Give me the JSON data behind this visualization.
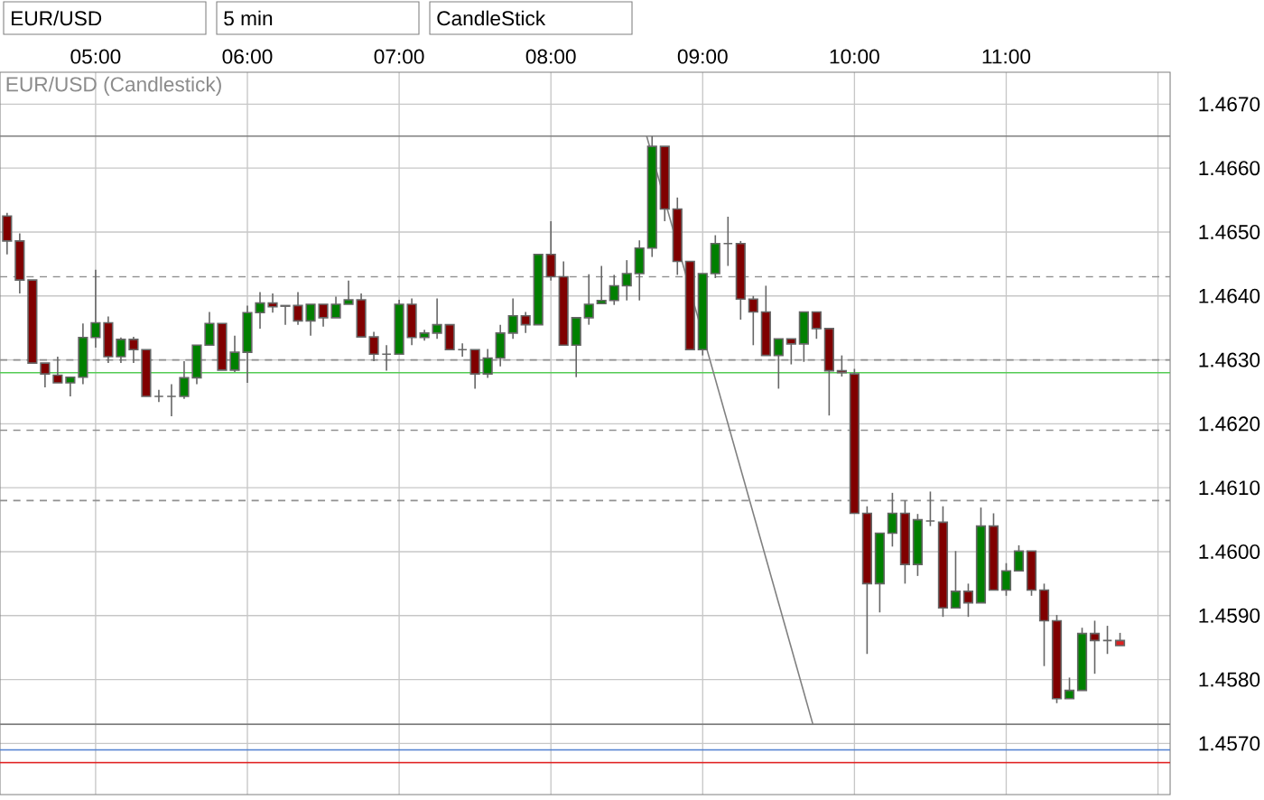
{
  "chart_data": {
    "type": "candlestick",
    "title": "EUR/USD (Candlestick)",
    "annotations": [
      "EUR/USD",
      "5 min",
      "CandleStick"
    ],
    "x": [
      4.4167,
      4.5,
      4.5833,
      4.6667,
      4.75,
      4.8333,
      4.9167,
      5,
      5.0833,
      5.1667,
      5.25,
      5.3333,
      5.4167,
      5.5,
      5.5833,
      5.6667,
      5.75,
      5.8333,
      5.9167,
      6,
      6.0833,
      6.1667,
      6.25,
      6.3333,
      6.4167,
      6.5,
      6.5833,
      6.6667,
      6.75,
      6.8333,
      6.9167,
      7,
      7.0833,
      7.1667,
      7.25,
      7.3333,
      7.4167,
      7.5,
      7.5833,
      7.6667,
      7.75,
      7.8333,
      7.9167,
      8,
      8.0833,
      8.1667,
      8.25,
      8.3333,
      8.4167,
      8.5,
      8.5833,
      8.6667,
      8.75,
      8.8333,
      8.9167,
      9,
      9.0833,
      9.1667,
      9.25,
      9.3333,
      9.4167,
      9.5,
      9.5833,
      9.6667,
      9.75,
      9.8333,
      9.9167,
      10,
      10.0833,
      10.1667,
      10.25,
      10.3333,
      10.4167,
      10.5,
      10.5833,
      10.6667,
      10.75,
      10.8333,
      10.9167,
      11,
      11.0833,
      11.1667,
      11.25,
      11.3333,
      11.4167,
      11.5,
      11.5833,
      11.6667,
      11.75
    ],
    "ohlc": [
      [
        1.46525,
        1.4653,
        1.46465,
        1.46486
      ],
      [
        1.46486,
        1.46498,
        1.46404,
        1.46425
      ],
      [
        1.46425,
        1.46425,
        1.46295,
        1.46295
      ],
      [
        1.46295,
        1.46295,
        1.46257,
        1.46278
      ],
      [
        1.46276,
        1.46305,
        1.46264,
        1.46264
      ],
      [
        1.46264,
        1.46273,
        1.46243,
        1.46273
      ],
      [
        1.46273,
        1.46357,
        1.46262,
        1.46335
      ],
      [
        1.46335,
        1.46441,
        1.46319,
        1.46358
      ],
      [
        1.46358,
        1.46368,
        1.46295,
        1.46305
      ],
      [
        1.46305,
        1.46335,
        1.46295,
        1.46332
      ],
      [
        1.46332,
        1.46336,
        1.46295,
        1.46316
      ],
      [
        1.46316,
        1.46316,
        1.46243,
        1.46243
      ],
      [
        1.46243,
        1.46253,
        1.46234,
        1.46243
      ],
      [
        1.46243,
        1.46262,
        1.46212,
        1.46243
      ],
      [
        1.46243,
        1.46298,
        1.46239,
        1.46272
      ],
      [
        1.46272,
        1.46323,
        1.46262,
        1.46323
      ],
      [
        1.46323,
        1.46375,
        1.46323,
        1.46357
      ],
      [
        1.46357,
        1.46357,
        1.46284,
        1.46284
      ],
      [
        1.46284,
        1.46338,
        1.46281,
        1.46312
      ],
      [
        1.46312,
        1.46385,
        1.46264,
        1.46374
      ],
      [
        1.46374,
        1.46406,
        1.46349,
        1.46389
      ],
      [
        1.46389,
        1.46404,
        1.46374,
        1.46383
      ],
      [
        1.46385,
        1.46385,
        1.46355,
        1.46384
      ],
      [
        1.46385,
        1.46406,
        1.46355,
        1.46361
      ],
      [
        1.46361,
        1.46387,
        1.46338,
        1.46387
      ],
      [
        1.46387,
        1.46387,
        1.46352,
        1.46366
      ],
      [
        1.46366,
        1.46399,
        1.46366,
        1.46387
      ],
      [
        1.46387,
        1.46424,
        1.46387,
        1.46394
      ],
      [
        1.46394,
        1.46404,
        1.46336,
        1.46336
      ],
      [
        1.46336,
        1.46344,
        1.46298,
        1.46309
      ],
      [
        1.46309,
        1.46323,
        1.46283,
        1.46309
      ],
      [
        1.46309,
        1.46394,
        1.46309,
        1.46387
      ],
      [
        1.46387,
        1.46396,
        1.46323,
        1.46335
      ],
      [
        1.46335,
        1.46347,
        1.4633,
        1.46342
      ],
      [
        1.46342,
        1.46396,
        1.46333,
        1.46355
      ],
      [
        1.46355,
        1.46355,
        1.46316,
        1.46316
      ],
      [
        1.46316,
        1.46326,
        1.46305,
        1.46316
      ],
      [
        1.46316,
        1.46316,
        1.46255,
        1.46278
      ],
      [
        1.46278,
        1.46317,
        1.46272,
        1.46303
      ],
      [
        1.46303,
        1.46355,
        1.4629,
        1.46342
      ],
      [
        1.46342,
        1.46396,
        1.46333,
        1.46369
      ],
      [
        1.46369,
        1.46375,
        1.46342,
        1.46355
      ],
      [
        1.46355,
        1.46465,
        1.46355,
        1.46465
      ],
      [
        1.46465,
        1.46517,
        1.46424,
        1.4643
      ],
      [
        1.4643,
        1.46454,
        1.46323,
        1.46323
      ],
      [
        1.46323,
        1.46366,
        1.46273,
        1.46366
      ],
      [
        1.46366,
        1.46434,
        1.46355,
        1.46387
      ],
      [
        1.46388,
        1.46447,
        1.46388,
        1.46393
      ],
      [
        1.46393,
        1.46433,
        1.46386,
        1.46416
      ],
      [
        1.46416,
        1.46456,
        1.46393,
        1.46435
      ],
      [
        1.46435,
        1.46487,
        1.46393,
        1.46475
      ],
      [
        1.46475,
        1.4665,
        1.46461,
        1.46634
      ],
      [
        1.46634,
        1.46634,
        1.46517,
        1.46536
      ],
      [
        1.46536,
        1.46554,
        1.46433,
        1.46454
      ],
      [
        1.46454,
        1.46454,
        1.46316,
        1.46316
      ],
      [
        1.46316,
        1.46435,
        1.46307,
        1.46435
      ],
      [
        1.46435,
        1.46495,
        1.46428,
        1.46482
      ],
      [
        1.46482,
        1.46524,
        1.46447,
        1.46482
      ],
      [
        1.46482,
        1.46486,
        1.46363,
        1.46395
      ],
      [
        1.46395,
        1.464,
        1.46323,
        1.46375
      ],
      [
        1.46375,
        1.46416,
        1.46307,
        1.46307
      ],
      [
        1.46307,
        1.46333,
        1.46255,
        1.46333
      ],
      [
        1.46333,
        1.46333,
        1.46293,
        1.46325
      ],
      [
        1.46325,
        1.46375,
        1.46297,
        1.46375
      ],
      [
        1.46375,
        1.46375,
        1.46333,
        1.46349
      ],
      [
        1.46349,
        1.46349,
        1.46213,
        1.46283
      ],
      [
        1.46283,
        1.46307,
        1.46274,
        1.4628
      ],
      [
        1.46278,
        1.46286,
        1.4606,
        1.4606
      ],
      [
        1.4606,
        1.46071,
        1.4584,
        1.4595
      ],
      [
        1.4595,
        1.46029,
        1.45905,
        1.46029
      ],
      [
        1.46029,
        1.46092,
        1.46008,
        1.4606
      ],
      [
        1.4606,
        1.4608,
        1.4595,
        1.4598
      ],
      [
        1.4598,
        1.46059,
        1.45962,
        1.4605
      ],
      [
        1.46048,
        1.46094,
        1.4604,
        1.46048
      ],
      [
        1.46046,
        1.46071,
        1.45898,
        1.45912
      ],
      [
        1.45912,
        1.46001,
        1.45912,
        1.45938
      ],
      [
        1.45938,
        1.4595,
        1.45898,
        1.4592
      ],
      [
        1.4592,
        1.46069,
        1.4592,
        1.4604
      ],
      [
        1.4604,
        1.4606,
        1.4594,
        1.4594
      ],
      [
        1.4594,
        1.45982,
        1.45931,
        1.4597
      ],
      [
        1.4597,
        1.4601,
        1.4597,
        1.46001
      ],
      [
        1.46001,
        1.46001,
        1.45931,
        1.4594
      ],
      [
        1.4594,
        1.4595,
        1.45821,
        1.45892
      ],
      [
        1.45892,
        1.45901,
        1.45763,
        1.4577
      ],
      [
        1.4577,
        1.45803,
        1.4577,
        1.45783
      ],
      [
        1.45783,
        1.45881,
        1.45783,
        1.45872
      ],
      [
        1.45872,
        1.45892,
        1.45809,
        1.45861
      ],
      [
        1.45861,
        1.45884,
        1.4584,
        1.45861
      ],
      [
        1.45861,
        1.45873,
        1.45853,
        1.45853
      ]
    ],
    "colors": [
      "#800000",
      "#800000",
      "#800000",
      "#800000",
      "#800000",
      "#008000",
      "#008000",
      "#008000",
      "#800000",
      "#008000",
      "#800000",
      "#800000",
      "#606060",
      "#606060",
      "#008000",
      "#008000",
      "#008000",
      "#800000",
      "#008000",
      "#008000",
      "#008000",
      "#800000",
      "#800000",
      "#800000",
      "#008000",
      "#800000",
      "#008000",
      "#008000",
      "#800000",
      "#800000",
      "#606060",
      "#008000",
      "#800000",
      "#008000",
      "#008000",
      "#800000",
      "#606060",
      "#800000",
      "#008000",
      "#008000",
      "#008000",
      "#800000",
      "#008000",
      "#800000",
      "#800000",
      "#008000",
      "#008000",
      "#008000",
      "#008000",
      "#008000",
      "#008000",
      "#008000",
      "#800000",
      "#800000",
      "#800000",
      "#008000",
      "#008000",
      "#606060",
      "#800000",
      "#800000",
      "#800000",
      "#008000",
      "#800000",
      "#008000",
      "#800000",
      "#800000",
      "#800000",
      "#800000",
      "#800000",
      "#008000",
      "#008000",
      "#800000",
      "#008000",
      "#606060",
      "#800000",
      "#008000",
      "#800000",
      "#008000",
      "#800000",
      "#008000",
      "#008000",
      "#800000",
      "#800000",
      "#800000",
      "#008000",
      "#008000",
      "#800000",
      "#606060",
      "#dd2020"
    ],
    "series": [
      {
        "type": "line",
        "x": [
          8.631,
          9.726
        ],
        "values": [
          1.4665,
          1.4573
        ],
        "color": "#808080"
      }
    ],
    "ref_lines": [
      {
        "axis": "y",
        "value": 1.4665,
        "color": "#808080",
        "line_style": "solid"
      },
      {
        "axis": "y",
        "value": 1.4643,
        "color": "#909090",
        "line_style": "dashed"
      },
      {
        "axis": "y",
        "value": 1.463,
        "color": "#909090",
        "line_style": "dashed"
      },
      {
        "axis": "y",
        "value": 1.4619,
        "color": "#909090",
        "line_style": "dashed"
      },
      {
        "axis": "y",
        "value": 1.4608,
        "color": "#909090",
        "line_style": "dashed"
      },
      {
        "axis": "y",
        "value": 1.4573,
        "color": "#808080",
        "line_style": "solid"
      },
      {
        "axis": "y",
        "value": 1.4628,
        "color": "#55cc55",
        "line_style": "solid"
      },
      {
        "axis": "y",
        "value": 1.4569,
        "color": "#5080d0",
        "line_style": "solid"
      },
      {
        "axis": "y",
        "value": 1.4567,
        "color": "#e02020",
        "line_style": "solid"
      }
    ],
    "xlim": [
      4.37,
      12.08
    ],
    "xticks": [
      {
        "value": 5,
        "label": "05:00"
      },
      {
        "value": 6,
        "label": "06:00"
      },
      {
        "value": 7,
        "label": "07:00"
      },
      {
        "value": 8,
        "label": "08:00"
      },
      {
        "value": 9,
        "label": "09:00"
      },
      {
        "value": 10,
        "label": "10:00"
      },
      {
        "value": 11,
        "label": "11:00"
      },
      {
        "value": 12,
        "label": null
      }
    ],
    "ylim": [
      1.4562,
      1.4675
    ],
    "yticks": [
      {
        "value": 1.457,
        "label": "1.4570"
      },
      {
        "value": 1.458,
        "label": "1.4580"
      },
      {
        "value": 1.459,
        "label": "1.4590"
      },
      {
        "value": 1.46,
        "label": "1.4600"
      },
      {
        "value": 1.461,
        "label": "1.4610"
      },
      {
        "value": 1.462,
        "label": "1.4620"
      },
      {
        "value": 1.463,
        "label": "1.4630"
      },
      {
        "value": 1.464,
        "label": "1.4640"
      },
      {
        "value": 1.465,
        "label": "1.4650"
      },
      {
        "value": 1.466,
        "label": "1.4660"
      },
      {
        "value": 1.467,
        "label": "1.4670"
      }
    ],
    "grid": true
  }
}
